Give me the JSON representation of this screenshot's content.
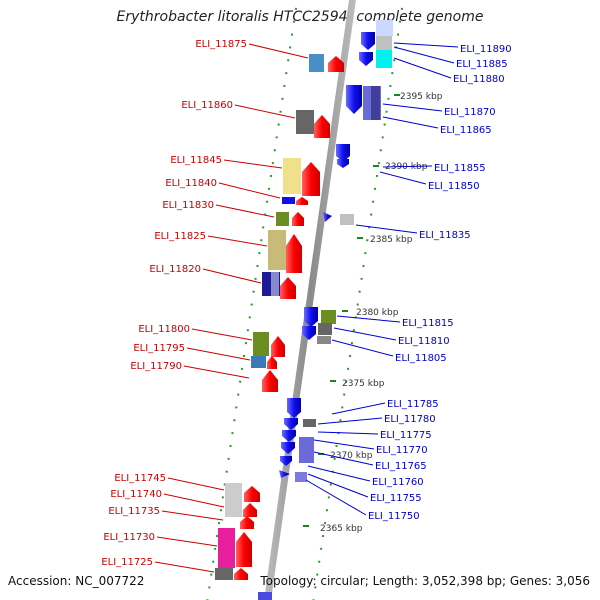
{
  "title": "Erythrobacter litoralis HTCC2594, complete genome",
  "accession": "Accession: NC_007722",
  "topology": "Topology: circular; Length: 3,052,398 bp; Genes: 3,056",
  "colors": {
    "left_label": "#cc0000",
    "right_label": "#0000cc",
    "backbone": "#9a9a9a",
    "tick": "#1a8a1a",
    "forward_gene": "#ff0000",
    "reverse_gene": "#1010ee"
  },
  "scale_labels": [
    "2395 kbp",
    "2390 kbp",
    "2385 kbp",
    "2380 kbp",
    "2375 kbp",
    "2370 kbp",
    "2365 kbp"
  ],
  "left_genes": [
    "ELI_11875",
    "ELI_11860",
    "ELI_11845",
    "ELI_11840",
    "ELI_11830",
    "ELI_11825",
    "ELI_11820",
    "ELI_11800",
    "ELI_11795",
    "ELI_11790",
    "ELI_11745",
    "ELI_11740",
    "ELI_11735",
    "ELI_11730",
    "ELI_11725"
  ],
  "right_genes": [
    "ELI_11890",
    "ELI_11885",
    "ELI_11880",
    "ELI_11870",
    "ELI_11865",
    "ELI_11855",
    "ELI_11850",
    "ELI_11835",
    "ELI_11815",
    "ELI_11810",
    "ELI_11805",
    "ELI_11785",
    "ELI_11780",
    "ELI_11775",
    "ELI_11770",
    "ELI_11765",
    "ELI_11760",
    "ELI_11755",
    "ELI_11750"
  ]
}
